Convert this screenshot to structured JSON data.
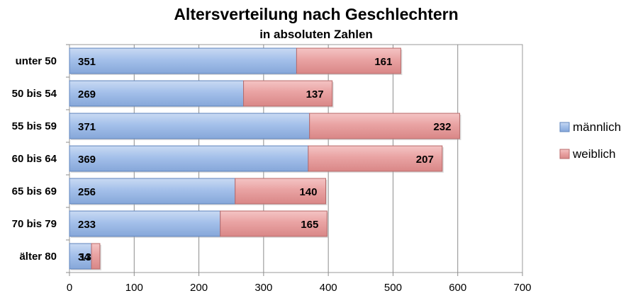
{
  "chart_data": {
    "type": "bar",
    "orientation": "horizontal",
    "stacked": true,
    "title": "Altersverteilung nach Geschlechtern",
    "subtitle": "in absoluten Zahlen",
    "categories": [
      "unter 50",
      "50 bis 54",
      "55 bis 59",
      "60 bis 64",
      "65 bis 69",
      "70 bis 79",
      "älter 80"
    ],
    "series": [
      {
        "name": "männlich",
        "values": [
          351,
          269,
          371,
          369,
          256,
          233,
          34
        ],
        "color": "#9dbbe6"
      },
      {
        "name": "weiblich",
        "values": [
          161,
          137,
          232,
          207,
          140,
          165,
          13
        ],
        "color": "#e9a0a0"
      }
    ],
    "xlim": [
      0,
      700
    ],
    "xticks": [
      0,
      100,
      200,
      300,
      400,
      500,
      600,
      700
    ],
    "grid": true,
    "legend_position": "right",
    "data_labels": true
  }
}
